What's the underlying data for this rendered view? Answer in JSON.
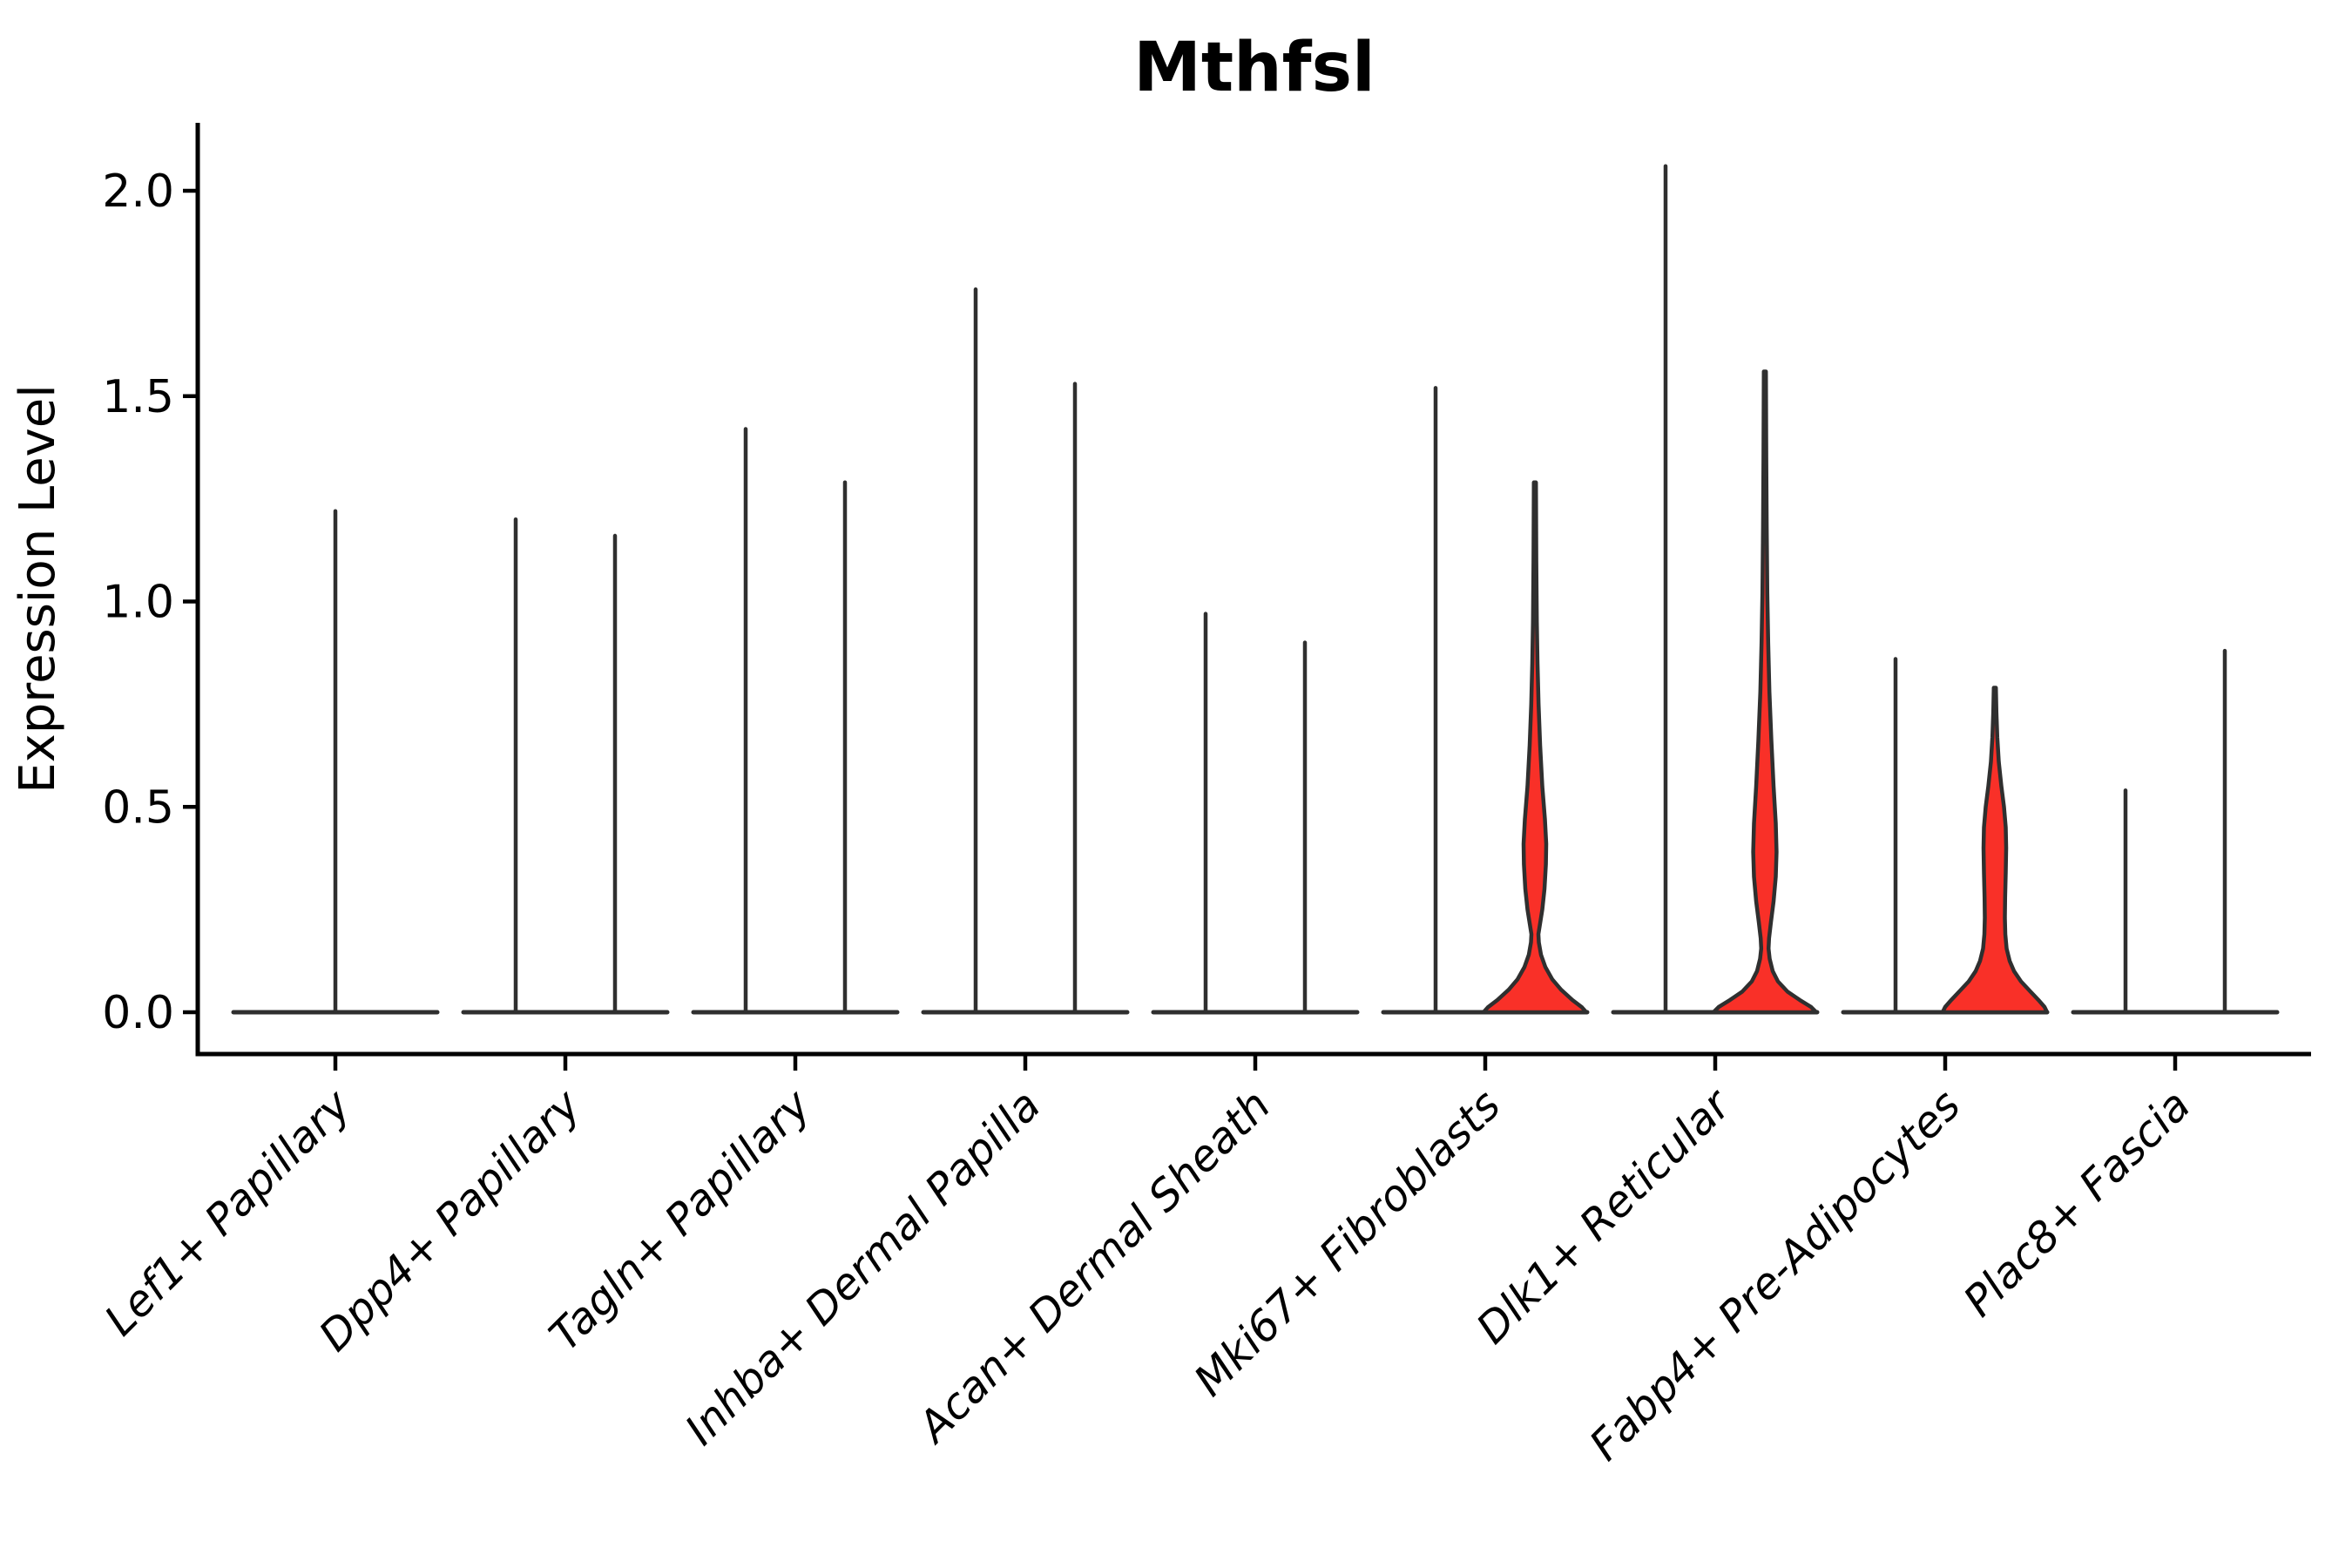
{
  "chart_data": {
    "type": "violin",
    "title": "Mthfsl",
    "ylabel": "Expression Level",
    "xlabel": "",
    "grid": false,
    "legend": "none",
    "ylim": [
      -0.1,
      2.16
    ],
    "ytick_labels": [
      "0.0",
      "0.5",
      "1.0",
      "1.5",
      "2.0"
    ],
    "ytick_values": [
      0.0,
      0.5,
      1.0,
      1.5,
      2.0
    ],
    "colors": {
      "violin_outline": "#2f2f2f",
      "violin_fill_red": "#f93028",
      "axis": "#000000",
      "text": "#000000",
      "background": "#ffffff"
    },
    "note_visual": "Each cell-type category shows two slim violins (split groups); most collapse to a flat baseline at 0 with a thin density spike up to the max expression value; three right-hand violins carry visible red-filled density bulges.",
    "categories": [
      {
        "label": "Lef1+ Papillary",
        "violins": [
          {
            "group": "single",
            "max": 1.22,
            "style": "spike"
          }
        ]
      },
      {
        "label": "Dpp4+ Papillary",
        "violins": [
          {
            "group": "left",
            "max": 1.2,
            "style": "spike"
          },
          {
            "group": "right",
            "max": 1.16,
            "style": "spike"
          }
        ]
      },
      {
        "label": "Tagln+ Papillary",
        "violins": [
          {
            "group": "left",
            "max": 1.42,
            "style": "spike"
          },
          {
            "group": "right",
            "max": 1.29,
            "style": "spike"
          }
        ]
      },
      {
        "label": "Inhba+ Dermal Papilla",
        "violins": [
          {
            "group": "left",
            "max": 1.76,
            "style": "spike"
          },
          {
            "group": "right",
            "max": 1.53,
            "style": "spike"
          }
        ]
      },
      {
        "label": "Acan+ Dermal Sheath",
        "violins": [
          {
            "group": "left",
            "max": 0.97,
            "style": "spike"
          },
          {
            "group": "right",
            "max": 0.9,
            "style": "spike"
          }
        ]
      },
      {
        "label": "Mki67+ Fibroblasts",
        "violins": [
          {
            "group": "left",
            "max": 1.52,
            "style": "spike"
          },
          {
            "group": "right",
            "max": 1.29,
            "style": "filled",
            "fill": "#f93028",
            "profile": [
              [
                1.29,
                1.2
              ],
              [
                1.1,
                1.6
              ],
              [
                0.95,
                2.2
              ],
              [
                0.85,
                3.0
              ],
              [
                0.75,
                4.2
              ],
              [
                0.65,
                6.0
              ],
              [
                0.55,
                8.5
              ],
              [
                0.47,
                11.5
              ],
              [
                0.41,
                13.0
              ],
              [
                0.36,
                12.6
              ],
              [
                0.3,
                11.0
              ],
              [
                0.25,
                8.5
              ],
              [
                0.21,
                5.5
              ],
              [
                0.19,
                4.0
              ],
              [
                0.17,
                4.5
              ],
              [
                0.14,
                7.0
              ],
              [
                0.11,
                12.0
              ],
              [
                0.08,
                20.0
              ],
              [
                0.055,
                30.0
              ],
              [
                0.03,
                43.0
              ],
              [
                0.012,
                54.0
              ],
              [
                0.0,
                59.0
              ]
            ]
          }
        ]
      },
      {
        "label": "Dlk1+ Reticular",
        "violins": [
          {
            "group": "left",
            "max": 2.06,
            "style": "spike"
          },
          {
            "group": "right",
            "max": 1.56,
            "style": "filled",
            "fill": "#f93028",
            "profile": [
              [
                1.56,
                1.2
              ],
              [
                1.35,
                1.6
              ],
              [
                1.18,
                2.1
              ],
              [
                1.02,
                2.8
              ],
              [
                0.9,
                3.8
              ],
              [
                0.78,
                5.2
              ],
              [
                0.66,
                7.5
              ],
              [
                0.55,
                10.0
              ],
              [
                0.46,
                12.5
              ],
              [
                0.39,
                13.4
              ],
              [
                0.33,
                12.5
              ],
              [
                0.27,
                10.0
              ],
              [
                0.22,
                7.0
              ],
              [
                0.18,
                4.8
              ],
              [
                0.155,
                4.2
              ],
              [
                0.13,
                5.5
              ],
              [
                0.1,
                9.0
              ],
              [
                0.075,
                15.0
              ],
              [
                0.05,
                26.0
              ],
              [
                0.03,
                40.0
              ],
              [
                0.013,
                53.0
              ],
              [
                0.0,
                59.0
              ]
            ]
          }
        ]
      },
      {
        "label": "Fabp4+ Pre-Adipocytes",
        "violins": [
          {
            "group": "left",
            "max": 0.86,
            "style": "spike"
          },
          {
            "group": "right",
            "max": 0.79,
            "style": "filled",
            "fill": "#f93028",
            "profile": [
              [
                0.79,
                1.2
              ],
              [
                0.73,
                1.8
              ],
              [
                0.67,
                2.8
              ],
              [
                0.61,
                4.5
              ],
              [
                0.55,
                7.5
              ],
              [
                0.5,
                10.5
              ],
              [
                0.45,
                12.5
              ],
              [
                0.4,
                13.0
              ],
              [
                0.34,
                12.5
              ],
              [
                0.28,
                11.8
              ],
              [
                0.23,
                11.5
              ],
              [
                0.19,
                12.0
              ],
              [
                0.155,
                13.5
              ],
              [
                0.125,
                17.0
              ],
              [
                0.1,
                22.0
              ],
              [
                0.075,
                30.0
              ],
              [
                0.05,
                41.0
              ],
              [
                0.03,
                50.0
              ],
              [
                0.013,
                57.0
              ],
              [
                0.0,
                60.0
              ]
            ]
          }
        ]
      },
      {
        "label": "Plac8+ Fascia",
        "violins": [
          {
            "group": "left",
            "max": 0.54,
            "style": "spike"
          },
          {
            "group": "right",
            "max": 0.88,
            "style": "spike"
          }
        ]
      }
    ]
  }
}
